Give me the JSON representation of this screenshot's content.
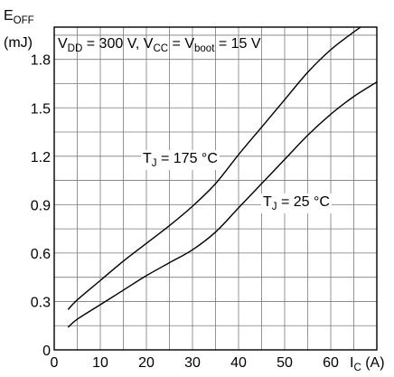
{
  "chart_data": {
    "type": "line",
    "y_title": {
      "main": "E",
      "sub": "OFF"
    },
    "y_unit": "(mJ)",
    "x_title": {
      "main": "I",
      "sub": "C",
      "unit": "(A)"
    },
    "conditions": [
      {
        "t": "V"
      },
      {
        "t": "DD",
        "sub": true
      },
      {
        "t": " = 300 V, V"
      },
      {
        "t": "CC",
        "sub": true
      },
      {
        "t": " = V"
      },
      {
        "t": "boot",
        "sub": true
      },
      {
        "t": " = 15 V"
      }
    ],
    "xlim": [
      0,
      70
    ],
    "ylim": [
      0,
      2.0
    ],
    "x_ticks": [
      0,
      10,
      20,
      30,
      40,
      50,
      60
    ],
    "x_tick_labels": [
      "0",
      "10",
      "20",
      "30",
      "40",
      "50",
      "60"
    ],
    "y_ticks": [
      0,
      0.3,
      0.6,
      0.9,
      1.2,
      1.5,
      1.8
    ],
    "y_tick_labels": [
      "0",
      "0.3",
      "0.6",
      "0.9",
      "1.2",
      "1.5",
      "1.8"
    ],
    "x_minor_step": 5,
    "y_minor_step": 0.15,
    "grid": true,
    "series": [
      {
        "name": "TJ = 175 °C",
        "label": [
          {
            "t": "T"
          },
          {
            "t": "J",
            "sub": true
          },
          {
            "t": " = 175 °C"
          }
        ],
        "points": [
          [
            3,
            0.25
          ],
          [
            5,
            0.31
          ],
          [
            10,
            0.43
          ],
          [
            15,
            0.55
          ],
          [
            20,
            0.66
          ],
          [
            25,
            0.77
          ],
          [
            30,
            0.89
          ],
          [
            35,
            1.03
          ],
          [
            40,
            1.21
          ],
          [
            45,
            1.38
          ],
          [
            50,
            1.55
          ],
          [
            55,
            1.72
          ],
          [
            60,
            1.86
          ],
          [
            65,
            1.97
          ],
          [
            70,
            2.07
          ]
        ]
      },
      {
        "name": "TJ = 25 °C",
        "label": [
          {
            "t": "T"
          },
          {
            "t": "J",
            "sub": true
          },
          {
            "t": " = 25 °C"
          }
        ],
        "points": [
          [
            3,
            0.14
          ],
          [
            5,
            0.19
          ],
          [
            10,
            0.28
          ],
          [
            15,
            0.37
          ],
          [
            20,
            0.46
          ],
          [
            25,
            0.54
          ],
          [
            30,
            0.62
          ],
          [
            35,
            0.73
          ],
          [
            40,
            0.88
          ],
          [
            45,
            1.03
          ],
          [
            50,
            1.18
          ],
          [
            55,
            1.33
          ],
          [
            60,
            1.46
          ],
          [
            65,
            1.57
          ],
          [
            70,
            1.66
          ]
        ]
      }
    ]
  }
}
